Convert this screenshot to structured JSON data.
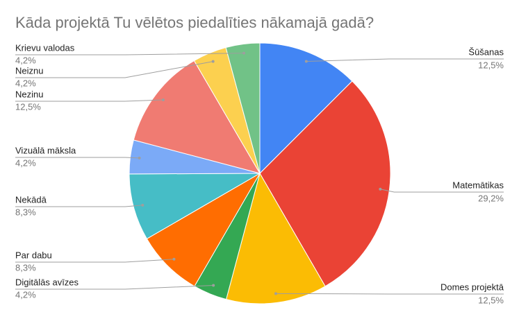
{
  "chart_data": {
    "type": "pie",
    "title": "Kāda projektā Tu vēlētos piedalīties nākamajā gadā?",
    "categories": [
      "Šūšanas",
      "Matemātikas",
      "Domes projektā",
      "Digitālās avīzes",
      "Par dabu",
      "Nekādā",
      "Vizuālā māksla",
      "Nezinu",
      "Neiznu",
      "Krievu valodas"
    ],
    "values": [
      12.5,
      29.2,
      12.5,
      4.2,
      8.3,
      8.3,
      4.2,
      12.5,
      4.2,
      4.2
    ],
    "value_labels": [
      "12,5%",
      "29,2%",
      "12,5%",
      "4,2%",
      "8,3%",
      "8,3%",
      "4,2%",
      "12,5%",
      "4,2%",
      "4,2%"
    ],
    "colors": [
      "#4285f4",
      "#ea4335",
      "#fbbc04",
      "#34a853",
      "#ff6d01",
      "#46bdc6",
      "#7baaf7",
      "#f07b72",
      "#fcd04f",
      "#71c287"
    ]
  }
}
